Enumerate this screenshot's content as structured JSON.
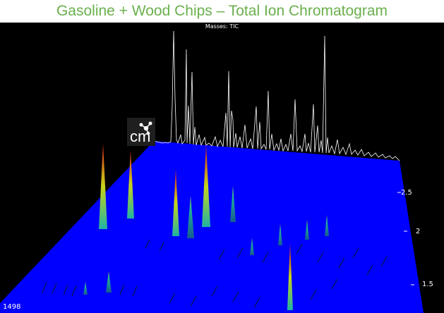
{
  "header": {
    "title": "Gasoline + Wood Chips – Total Ion Chromatogram"
  },
  "plot": {
    "masses_label": "Masses:  TIC",
    "y_ticks": [
      "2.5",
      "2",
      "1.5"
    ],
    "x_tick_start": "1498",
    "surface_color": "#0000ff",
    "trace_color": "#ffffff",
    "logo_letters": "cm"
  }
}
